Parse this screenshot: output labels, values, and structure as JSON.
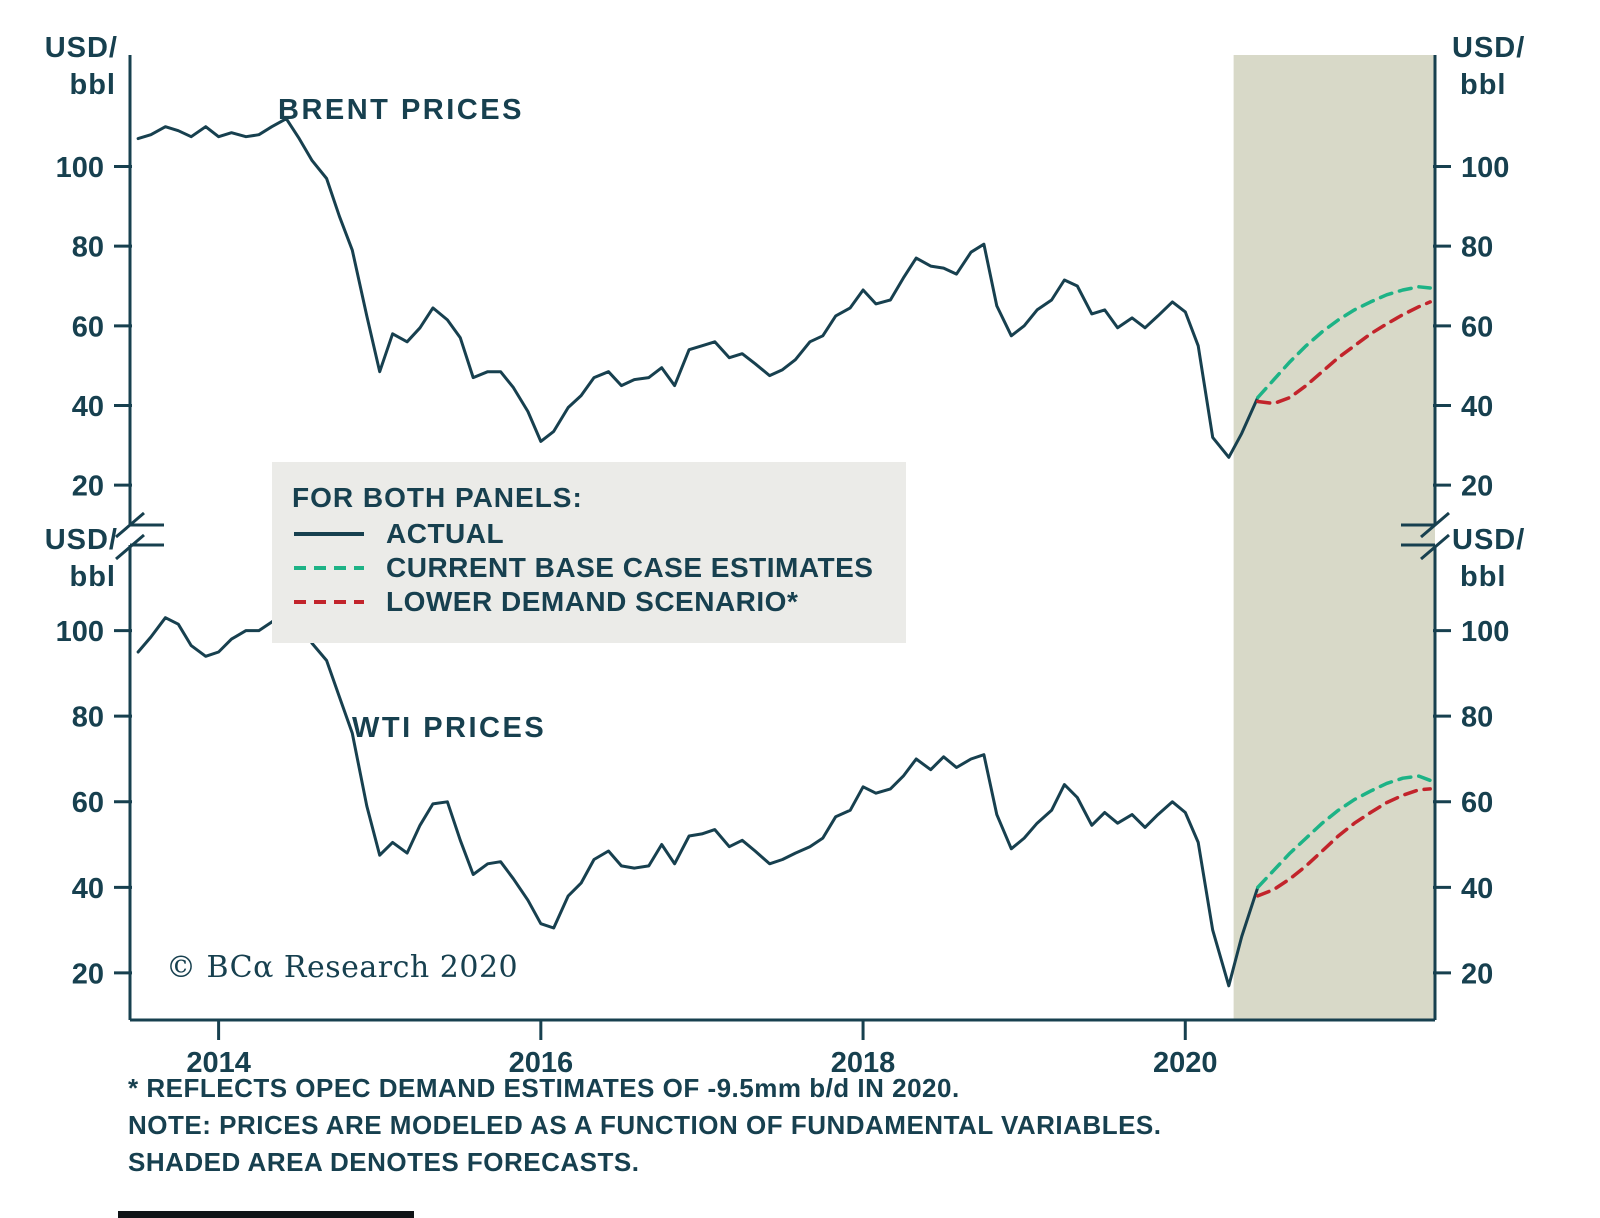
{
  "colors": {
    "text": "#17404f",
    "line": "#17404f",
    "base_case": "#1db386",
    "lower_demand": "#c2242b",
    "forecast_shade": "#d8d9c8",
    "legend_bg": "#ebebe8"
  },
  "axis": {
    "unit_line1": "USD/",
    "unit_line2": "bbl"
  },
  "legend": {
    "title": "FOR BOTH PANELS:",
    "items": [
      {
        "label": "ACTUAL",
        "style": "solid",
        "color": "#17404f"
      },
      {
        "label": "CURRENT BASE CASE ESTIMATES",
        "style": "dashed",
        "color": "#1db386"
      },
      {
        "label": "LOWER DEMAND SCENARIO*",
        "style": "dashed",
        "color": "#c2242b"
      }
    ]
  },
  "footer": {
    "copyright": "© BCα Research 2020",
    "notes": [
      "* REFLECTS OPEC DEMAND ESTIMATES OF -9.5mm b/d IN 2020.",
      "NOTE: PRICES ARE MODELED AS A FUNCTION OF FUNDAMENTAL VARIABLES.",
      "SHADED AREA DENOTES FORECASTS."
    ]
  },
  "chart_data": [
    {
      "type": "line",
      "title": "BRENT PRICES",
      "ylabel": "USD/bbl",
      "xlim": [
        2013.45,
        2021.55
      ],
      "ylim": [
        10,
        128
      ],
      "y_ticks": [
        20,
        40,
        60,
        80,
        100
      ],
      "x_ticks": [
        2014,
        2016,
        2018,
        2020
      ],
      "grid": false,
      "legend_position": "center",
      "forecast_start": 2020.3,
      "series": [
        {
          "name": "ACTUAL",
          "color": "#17404f",
          "dashed": false,
          "points": [
            [
              2013.5,
              107
            ],
            [
              2013.58,
              108
            ],
            [
              2013.67,
              110
            ],
            [
              2013.75,
              109
            ],
            [
              2013.83,
              107.5
            ],
            [
              2013.92,
              110
            ],
            [
              2014,
              107.5
            ],
            [
              2014.08,
              108.5
            ],
            [
              2014.17,
              107.5
            ],
            [
              2014.25,
              108
            ],
            [
              2014.33,
              110
            ],
            [
              2014.42,
              112
            ],
            [
              2014.5,
              107
            ],
            [
              2014.58,
              101.5
            ],
            [
              2014.67,
              97
            ],
            [
              2014.75,
              87.5
            ],
            [
              2014.83,
              79
            ],
            [
              2014.92,
              62.5
            ],
            [
              2015,
              48.5
            ],
            [
              2015.08,
              58
            ],
            [
              2015.17,
              56
            ],
            [
              2015.25,
              59.5
            ],
            [
              2015.33,
              64.5
            ],
            [
              2015.42,
              61.5
            ],
            [
              2015.5,
              57
            ],
            [
              2015.58,
              47
            ],
            [
              2015.67,
              48.5
            ],
            [
              2015.75,
              48.5
            ],
            [
              2015.83,
              44.5
            ],
            [
              2015.92,
              38.5
            ],
            [
              2016,
              31
            ],
            [
              2016.08,
              33.5
            ],
            [
              2016.17,
              39.5
            ],
            [
              2016.25,
              42.5
            ],
            [
              2016.33,
              47
            ],
            [
              2016.42,
              48.5
            ],
            [
              2016.5,
              45
            ],
            [
              2016.58,
              46.5
            ],
            [
              2016.67,
              47
            ],
            [
              2016.75,
              49.5
            ],
            [
              2016.83,
              45
            ],
            [
              2016.92,
              54
            ],
            [
              2017,
              55
            ],
            [
              2017.08,
              56
            ],
            [
              2017.17,
              52
            ],
            [
              2017.25,
              53
            ],
            [
              2017.33,
              50.5
            ],
            [
              2017.42,
              47.5
            ],
            [
              2017.5,
              49
            ],
            [
              2017.58,
              51.5
            ],
            [
              2017.67,
              56
            ],
            [
              2017.75,
              57.5
            ],
            [
              2017.83,
              62.5
            ],
            [
              2017.92,
              64.5
            ],
            [
              2018,
              69
            ],
            [
              2018.08,
              65.5
            ],
            [
              2018.17,
              66.5
            ],
            [
              2018.25,
              72
            ],
            [
              2018.33,
              77
            ],
            [
              2018.42,
              75
            ],
            [
              2018.5,
              74.5
            ],
            [
              2018.58,
              73
            ],
            [
              2018.67,
              78.5
            ],
            [
              2018.75,
              80.5
            ],
            [
              2018.83,
              65
            ],
            [
              2018.92,
              57.5
            ],
            [
              2019,
              60
            ],
            [
              2019.08,
              64
            ],
            [
              2019.17,
              66.5
            ],
            [
              2019.25,
              71.5
            ],
            [
              2019.33,
              70
            ],
            [
              2019.42,
              63
            ],
            [
              2019.5,
              64
            ],
            [
              2019.58,
              59.5
            ],
            [
              2019.67,
              62
            ],
            [
              2019.75,
              59.5
            ],
            [
              2019.83,
              62.5
            ],
            [
              2019.92,
              66
            ],
            [
              2020,
              63.5
            ],
            [
              2020.08,
              55
            ],
            [
              2020.17,
              32
            ],
            [
              2020.27,
              27
            ],
            [
              2020.35,
              33
            ],
            [
              2020.45,
              42
            ]
          ]
        },
        {
          "name": "CURRENT BASE CASE ESTIMATES",
          "color": "#1db386",
          "dashed": true,
          "points": [
            [
              2020.45,
              42
            ],
            [
              2020.55,
              46.5
            ],
            [
              2020.65,
              51
            ],
            [
              2020.75,
              55
            ],
            [
              2020.85,
              58.5
            ],
            [
              2020.95,
              61.5
            ],
            [
              2021.05,
              64
            ],
            [
              2021.15,
              66
            ],
            [
              2021.25,
              67.8
            ],
            [
              2021.35,
              69
            ],
            [
              2021.45,
              69.8
            ],
            [
              2021.52,
              69.5
            ]
          ]
        },
        {
          "name": "LOWER DEMAND SCENARIO*",
          "color": "#c2242b",
          "dashed": true,
          "points": [
            [
              2020.45,
              41
            ],
            [
              2020.55,
              40.5
            ],
            [
              2020.65,
              42
            ],
            [
              2020.75,
              45
            ],
            [
              2020.85,
              48.5
            ],
            [
              2020.95,
              52
            ],
            [
              2021.05,
              55
            ],
            [
              2021.15,
              58
            ],
            [
              2021.25,
              60.5
            ],
            [
              2021.35,
              62.8
            ],
            [
              2021.45,
              64.8
            ],
            [
              2021.52,
              66
            ]
          ]
        }
      ]
    },
    {
      "type": "line",
      "title": "WTI PRICES",
      "ylabel": "USD/bbl",
      "xlim": [
        2013.45,
        2021.55
      ],
      "ylim": [
        9,
        120
      ],
      "y_ticks": [
        20,
        40,
        60,
        80,
        100
      ],
      "x_ticks": [
        2014,
        2016,
        2018,
        2020
      ],
      "grid": false,
      "legend_position": "center",
      "forecast_start": 2020.3,
      "series": [
        {
          "name": "ACTUAL",
          "color": "#17404f",
          "dashed": false,
          "points": [
            [
              2013.5,
              95
            ],
            [
              2013.58,
              98.5
            ],
            [
              2013.67,
              103
            ],
            [
              2013.75,
              101.5
            ],
            [
              2013.83,
              96.5
            ],
            [
              2013.92,
              94
            ],
            [
              2014,
              95
            ],
            [
              2014.08,
              98
            ],
            [
              2014.17,
              100
            ],
            [
              2014.25,
              100
            ],
            [
              2014.33,
              102
            ],
            [
              2014.42,
              104.5
            ],
            [
              2014.5,
              102.5
            ],
            [
              2014.58,
              97
            ],
            [
              2014.67,
              93
            ],
            [
              2014.75,
              84.5
            ],
            [
              2014.83,
              76
            ],
            [
              2014.92,
              59
            ],
            [
              2015,
              47.5
            ],
            [
              2015.08,
              50.5
            ],
            [
              2015.17,
              48
            ],
            [
              2015.25,
              54.5
            ],
            [
              2015.33,
              59.5
            ],
            [
              2015.42,
              60
            ],
            [
              2015.5,
              51
            ],
            [
              2015.58,
              43
            ],
            [
              2015.67,
              45.5
            ],
            [
              2015.75,
              46
            ],
            [
              2015.83,
              42
            ],
            [
              2015.92,
              37
            ],
            [
              2016,
              31.5
            ],
            [
              2016.08,
              30.5
            ],
            [
              2016.17,
              38
            ],
            [
              2016.25,
              41
            ],
            [
              2016.33,
              46.5
            ],
            [
              2016.42,
              48.5
            ],
            [
              2016.5,
              45
            ],
            [
              2016.58,
              44.5
            ],
            [
              2016.67,
              45
            ],
            [
              2016.75,
              50
            ],
            [
              2016.83,
              45.5
            ],
            [
              2016.92,
              52
            ],
            [
              2017,
              52.5
            ],
            [
              2017.08,
              53.5
            ],
            [
              2017.17,
              49.5
            ],
            [
              2017.25,
              51
            ],
            [
              2017.33,
              48.5
            ],
            [
              2017.42,
              45.5
            ],
            [
              2017.5,
              46.5
            ],
            [
              2017.58,
              48
            ],
            [
              2017.67,
              49.5
            ],
            [
              2017.75,
              51.5
            ],
            [
              2017.83,
              56.5
            ],
            [
              2017.92,
              58
            ],
            [
              2018,
              63.5
            ],
            [
              2018.08,
              62
            ],
            [
              2018.17,
              63
            ],
            [
              2018.25,
              66
            ],
            [
              2018.33,
              70
            ],
            [
              2018.42,
              67.5
            ],
            [
              2018.5,
              70.5
            ],
            [
              2018.58,
              68
            ],
            [
              2018.67,
              70
            ],
            [
              2018.75,
              71
            ],
            [
              2018.83,
              57
            ],
            [
              2018.92,
              49
            ],
            [
              2019,
              51.5
            ],
            [
              2019.08,
              55
            ],
            [
              2019.17,
              58
            ],
            [
              2019.25,
              64
            ],
            [
              2019.33,
              61
            ],
            [
              2019.42,
              54.5
            ],
            [
              2019.5,
              57.5
            ],
            [
              2019.58,
              55
            ],
            [
              2019.67,
              57
            ],
            [
              2019.75,
              54
            ],
            [
              2019.83,
              57
            ],
            [
              2019.92,
              60
            ],
            [
              2020,
              57.5
            ],
            [
              2020.08,
              50.5
            ],
            [
              2020.17,
              30
            ],
            [
              2020.27,
              17
            ],
            [
              2020.35,
              28.5
            ],
            [
              2020.45,
              40
            ]
          ]
        },
        {
          "name": "CURRENT BASE CASE ESTIMATES",
          "color": "#1db386",
          "dashed": true,
          "points": [
            [
              2020.45,
              40
            ],
            [
              2020.55,
              44
            ],
            [
              2020.65,
              48
            ],
            [
              2020.75,
              51.5
            ],
            [
              2020.85,
              55
            ],
            [
              2020.95,
              58
            ],
            [
              2021.05,
              60.5
            ],
            [
              2021.15,
              62.5
            ],
            [
              2021.25,
              64.3
            ],
            [
              2021.35,
              65.5
            ],
            [
              2021.45,
              66
            ],
            [
              2021.52,
              65
            ]
          ]
        },
        {
          "name": "LOWER DEMAND SCENARIO*",
          "color": "#c2242b",
          "dashed": true,
          "points": [
            [
              2020.45,
              38
            ],
            [
              2020.55,
              39.5
            ],
            [
              2020.65,
              42
            ],
            [
              2020.75,
              45
            ],
            [
              2020.85,
              48.5
            ],
            [
              2020.95,
              52
            ],
            [
              2021.05,
              55
            ],
            [
              2021.15,
              57.5
            ],
            [
              2021.25,
              59.8
            ],
            [
              2021.35,
              61.5
            ],
            [
              2021.45,
              62.8
            ],
            [
              2021.52,
              63
            ]
          ]
        }
      ]
    }
  ]
}
